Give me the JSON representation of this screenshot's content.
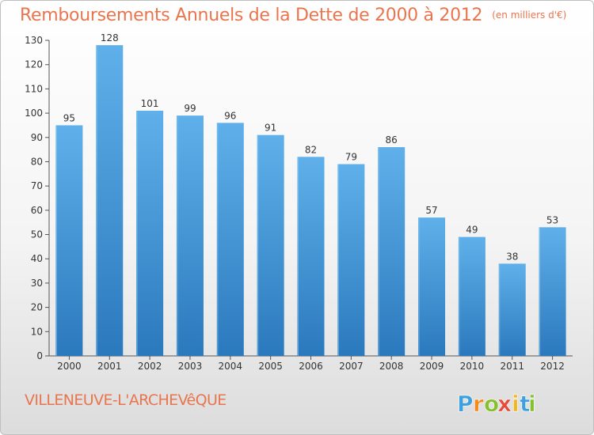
{
  "title": "Remboursements Annuels de la Dette de 2000 à 2012",
  "title_unit": "(en milliers d'€)",
  "commune": "VILLENEUVE-L'ARCHEVêQUE",
  "logo": {
    "letters": [
      "P",
      "r",
      "o",
      "x",
      "i",
      "t",
      "i"
    ],
    "colors": [
      "#3ea0dc",
      "#f28a1e",
      "#86bf2f",
      "#e54b3a",
      "#f2b51e",
      "#3ea0dc",
      "#86bf2f"
    ]
  },
  "chart_data": {
    "type": "bar",
    "categories": [
      "2000",
      "2001",
      "2002",
      "2003",
      "2004",
      "2005",
      "2006",
      "2007",
      "2008",
      "2009",
      "2010",
      "2011",
      "2012"
    ],
    "values": [
      95,
      128,
      101,
      99,
      96,
      91,
      82,
      79,
      86,
      57,
      49,
      38,
      53
    ],
    "ylim": [
      0,
      130
    ],
    "yticks": [
      0,
      10,
      20,
      30,
      40,
      50,
      60,
      70,
      80,
      90,
      100,
      110,
      120,
      130
    ],
    "grid": false,
    "colors": {
      "bar_top": "#5fb0ea",
      "bar_bottom": "#2b79bd",
      "axis": "#555555",
      "tick_text": "#333333"
    }
  }
}
